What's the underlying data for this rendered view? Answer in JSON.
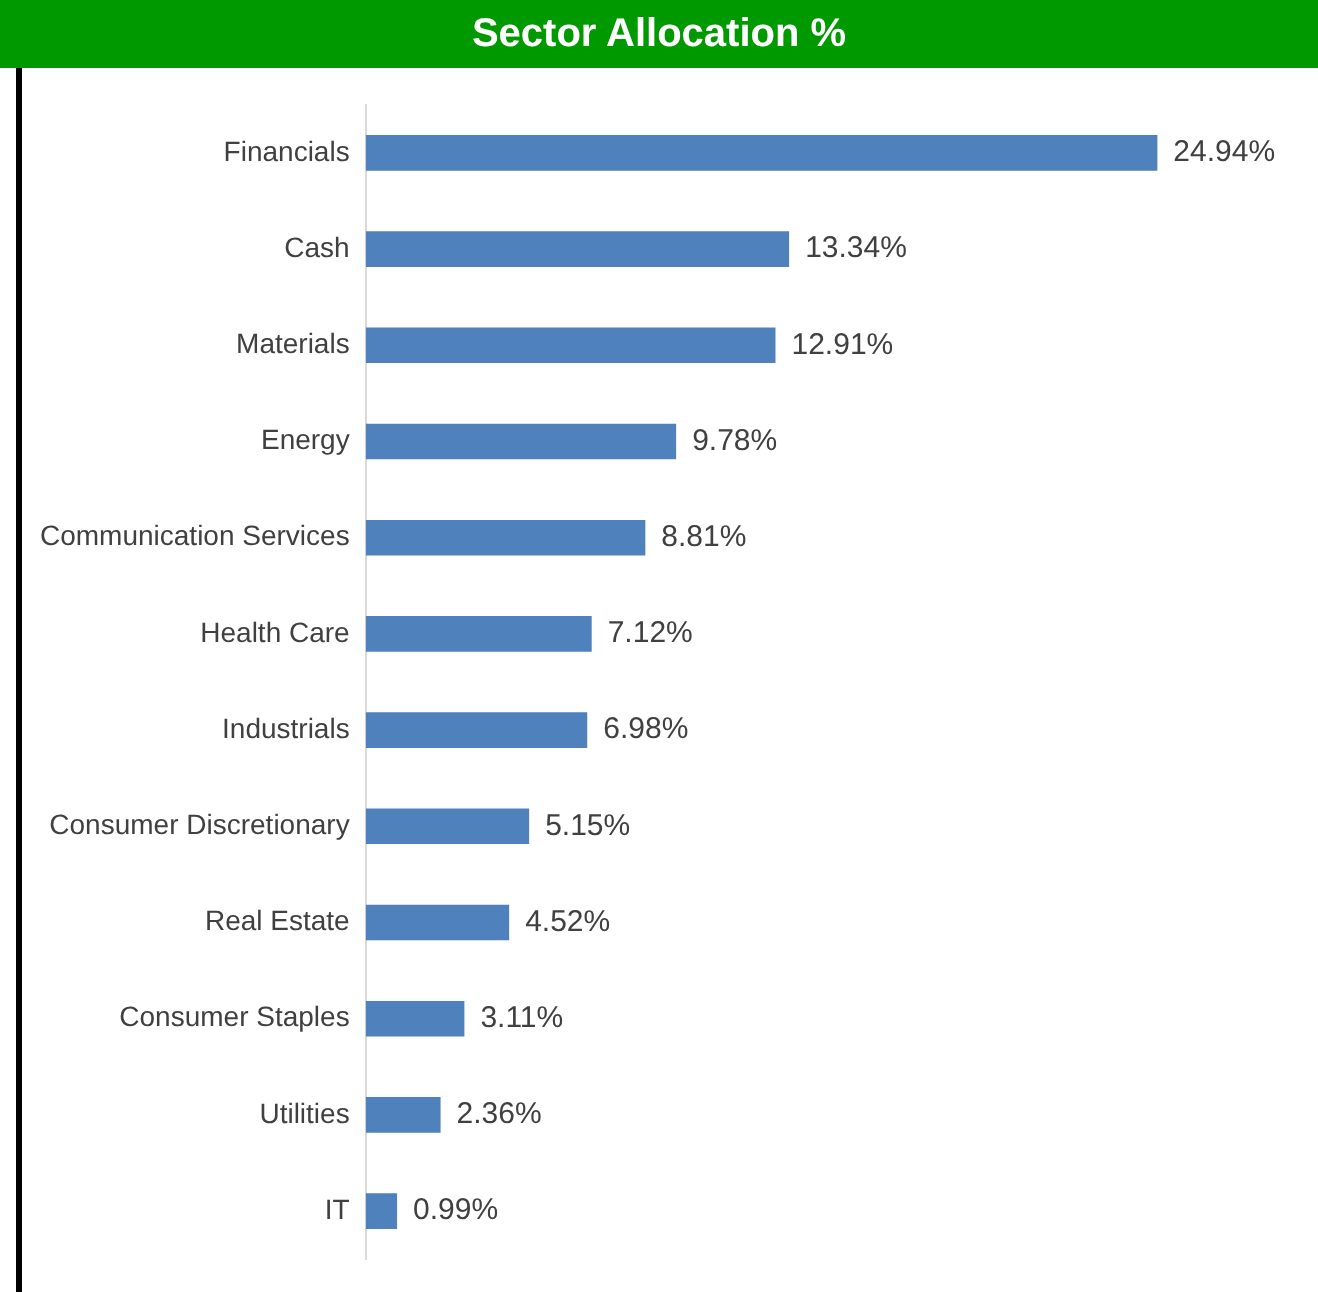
{
  "chart_data": {
    "type": "bar",
    "orientation": "horizontal",
    "title": "Sector Allocation %",
    "categories": [
      "Financials",
      "Cash",
      "Materials",
      "Energy",
      "Communication Services",
      "Health Care",
      "Industrials",
      "Consumer Discretionary",
      "Real Estate",
      "Consumer Staples",
      "Utilities",
      "IT"
    ],
    "values": [
      24.94,
      13.34,
      12.91,
      9.78,
      8.81,
      7.12,
      6.98,
      5.15,
      4.52,
      3.11,
      2.36,
      0.99
    ],
    "value_labels": [
      "24.94%",
      "13.34%",
      "12.91%",
      "9.78%",
      "8.81%",
      "7.12%",
      "6.98%",
      "5.15%",
      "4.52%",
      "3.11%",
      "2.36%",
      "0.99%"
    ],
    "color": "#4f81bd",
    "legend": false
  }
}
